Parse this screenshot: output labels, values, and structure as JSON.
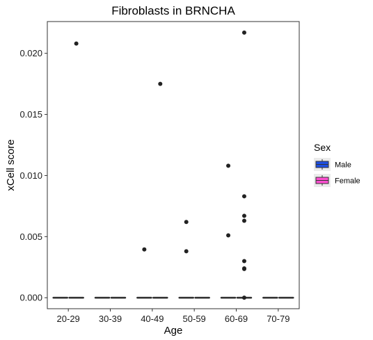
{
  "chart_data": {
    "type": "box",
    "title": "Fibroblasts in BRNCHA",
    "xlabel": "Age",
    "ylabel": "xCell score",
    "categories": [
      "20-29",
      "30-39",
      "40-49",
      "50-59",
      "60-69",
      "70-79"
    ],
    "ylim": [
      -0.0009,
      0.0226
    ],
    "yticks": [
      0.0,
      0.005,
      0.01,
      0.015,
      0.02
    ],
    "ytick_labels": [
      "0.000",
      "0.005",
      "0.010",
      "0.015",
      "0.020"
    ],
    "legend": {
      "title": "Sex",
      "position": "right",
      "entries": [
        {
          "name": "Male",
          "color": "#1f4fe0"
        },
        {
          "name": "Female",
          "color": "#ff4fd1"
        }
      ]
    },
    "series": [
      {
        "name": "Male",
        "color": "#1f4fe0",
        "boxes": [
          {
            "category": "20-29",
            "median": 0,
            "q1": 0,
            "q3": 0
          },
          {
            "category": "30-39",
            "median": 0,
            "q1": 0,
            "q3": 0
          },
          {
            "category": "40-49",
            "median": 0,
            "q1": 0,
            "q3": 0
          },
          {
            "category": "50-59",
            "median": 0,
            "q1": 0,
            "q3": 0
          },
          {
            "category": "60-69",
            "median": 0,
            "q1": 0,
            "q3": 0
          },
          {
            "category": "70-79",
            "median": 0,
            "q1": 0,
            "q3": 0
          }
        ],
        "outliers": [
          {
            "category": "40-49",
            "value": 0.00395
          },
          {
            "category": "50-59",
            "value": 0.0062
          },
          {
            "category": "50-59",
            "value": 0.0038
          },
          {
            "category": "60-69",
            "value": 0.0108
          },
          {
            "category": "60-69",
            "value": 0.0051
          }
        ]
      },
      {
        "name": "Female",
        "color": "#ff4fd1",
        "boxes": [
          {
            "category": "20-29",
            "median": 0,
            "q1": 0,
            "q3": 0
          },
          {
            "category": "30-39",
            "median": 0,
            "q1": 0,
            "q3": 0
          },
          {
            "category": "40-49",
            "median": 0,
            "q1": 0,
            "q3": 0
          },
          {
            "category": "50-59",
            "median": 0,
            "q1": 0,
            "q3": 0
          },
          {
            "category": "60-69",
            "median": 0,
            "q1": 0,
            "q3": 0
          },
          {
            "category": "70-79",
            "median": 0,
            "q1": 0,
            "q3": 0
          }
        ],
        "outliers": [
          {
            "category": "20-29",
            "value": 0.0208
          },
          {
            "category": "40-49",
            "value": 0.0175
          },
          {
            "category": "60-69",
            "value": 0.0217
          },
          {
            "category": "60-69",
            "value": 0.0083
          },
          {
            "category": "60-69",
            "value": 0.0067
          },
          {
            "category": "60-69",
            "value": 0.0063
          },
          {
            "category": "60-69",
            "value": 0.003
          },
          {
            "category": "60-69",
            "value": 0.00235
          },
          {
            "category": "60-69",
            "value": 0.0024
          },
          {
            "category": "60-69",
            "value": 0.0
          }
        ]
      }
    ]
  }
}
